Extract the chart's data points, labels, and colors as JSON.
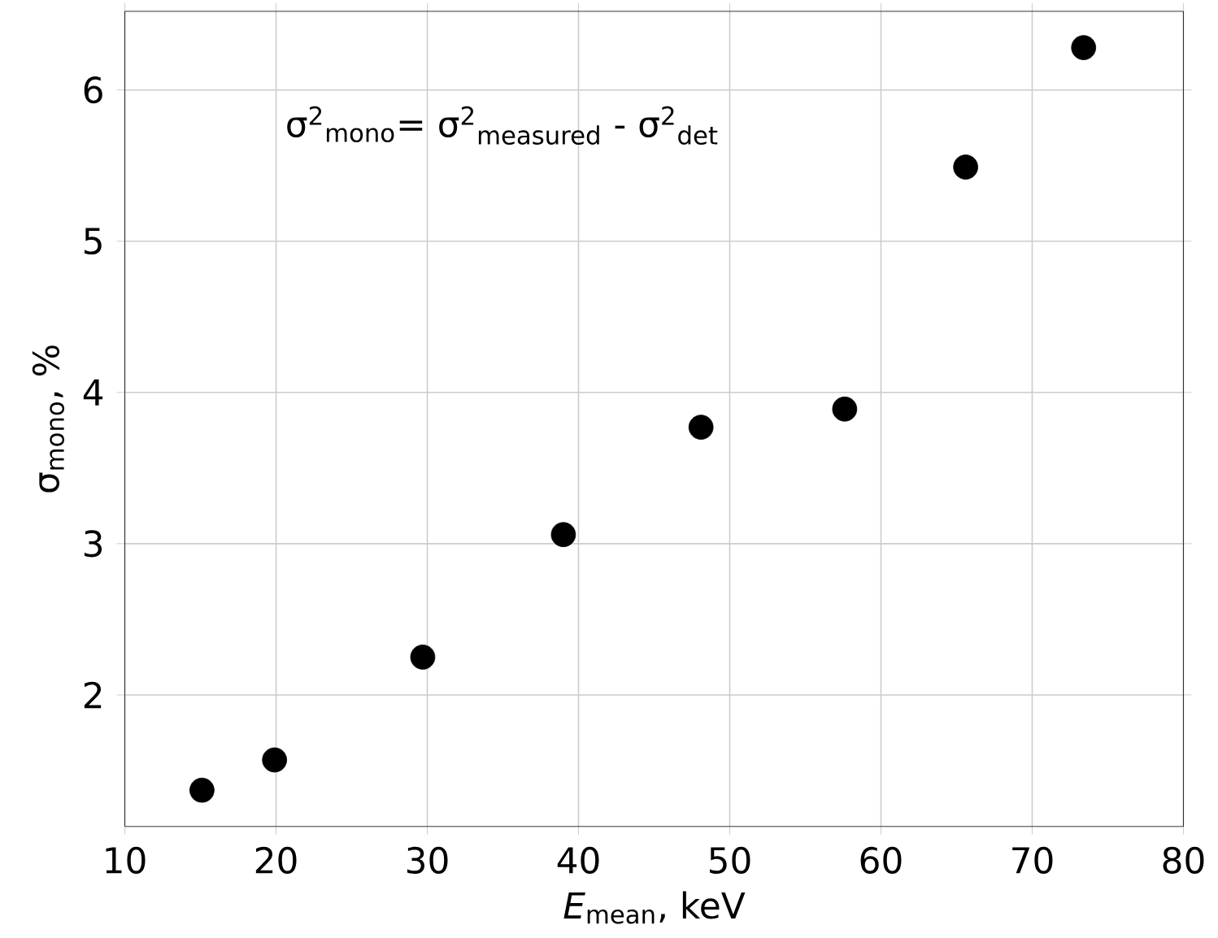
{
  "chart_data": {
    "type": "scatter",
    "xlabel": "*E*$_{mean}$, keV",
    "ylabel": "σ$_{mono}$, %",
    "annotations": [
      "σ$^{2}$$_{mono}$= σ$^{2}$$_{measured}$ - σ$^{2}$$_{det}$"
    ],
    "x": [
      15.1,
      19.9,
      29.7,
      39.0,
      48.1,
      57.6,
      65.6,
      73.4
    ],
    "series": [
      {
        "color": "#000000",
        "values": [
          1.37,
          1.57,
          2.25,
          3.06,
          3.77,
          3.89,
          5.49,
          6.28
        ]
      }
    ],
    "xlim": [
      10,
      80
    ],
    "ylim": [
      1.13,
      6.52
    ],
    "xticks": [
      10,
      20,
      30,
      40,
      50,
      60,
      70,
      80
    ],
    "yticks": [
      2,
      3,
      4,
      5,
      6
    ],
    "grid": true,
    "marker": "circle"
  }
}
